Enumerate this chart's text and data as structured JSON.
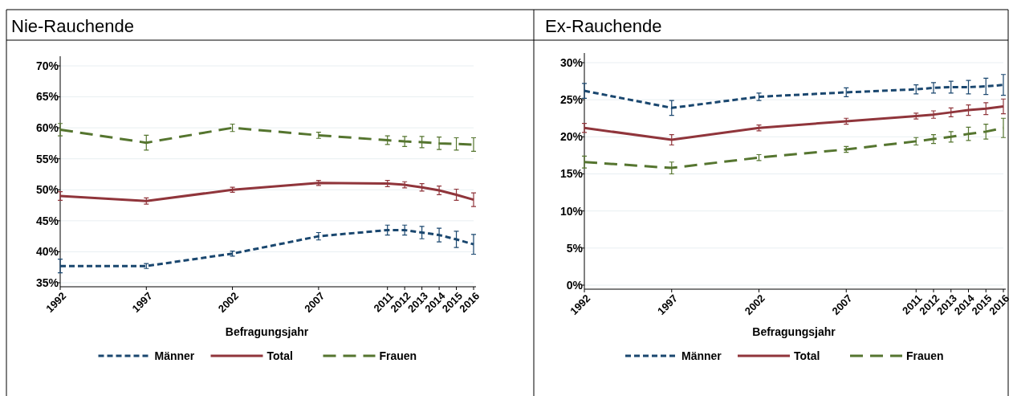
{
  "chart_data": [
    {
      "type": "line",
      "title": "Nie-Rauchende",
      "xlabel": "Befragungsjahr",
      "x": [
        1992,
        1997,
        2002,
        2007,
        2011,
        2012,
        2013,
        2014,
        2015,
        2016
      ],
      "xlim": [
        1992,
        2016
      ],
      "xticks": [
        1992,
        1997,
        2002,
        2007,
        2011,
        2012,
        2013,
        2014,
        2015,
        2016
      ],
      "ylim": [
        35,
        70
      ],
      "yticks": [
        {
          "value": 35,
          "label": "35%"
        },
        {
          "value": 40,
          "label": "40%"
        },
        {
          "value": 45,
          "label": "45%"
        },
        {
          "value": 50,
          "label": "50%"
        },
        {
          "value": 55,
          "label": "55%"
        },
        {
          "value": 60,
          "label": "60%"
        },
        {
          "value": 65,
          "label": "65%"
        },
        {
          "value": 70,
          "label": "70%"
        }
      ],
      "grid": "y",
      "legend": "bottom",
      "series": [
        {
          "name": "Männer",
          "color": "#1a476f",
          "line_style": "dashed",
          "values": [
            37.7,
            37.7,
            39.7,
            42.5,
            43.5,
            43.5,
            43.1,
            42.7,
            42.0,
            41.2
          ],
          "errors": [
            1.1,
            0.4,
            0.4,
            0.6,
            0.8,
            0.8,
            1.0,
            1.1,
            1.3,
            1.6
          ]
        },
        {
          "name": "Total",
          "color": "#90353b",
          "line_style": "solid",
          "values": [
            49.0,
            48.2,
            50.0,
            51.1,
            51.0,
            50.8,
            50.4,
            49.9,
            49.2,
            48.4
          ],
          "errors": [
            0.7,
            0.5,
            0.4,
            0.4,
            0.5,
            0.5,
            0.6,
            0.7,
            0.9,
            1.1
          ]
        },
        {
          "name": "Frauen",
          "color": "#55752f",
          "line_style": "dashed",
          "values": [
            59.7,
            57.6,
            60.0,
            58.8,
            58.0,
            57.8,
            57.7,
            57.5,
            57.4,
            57.3
          ],
          "errors": [
            1.0,
            1.2,
            0.6,
            0.5,
            0.7,
            0.8,
            0.9,
            1.0,
            1.0,
            1.1
          ]
        }
      ]
    },
    {
      "type": "line",
      "title": "Ex-Rauchende",
      "xlabel": "Befragungsjahr",
      "x": [
        1992,
        1997,
        2002,
        2007,
        2011,
        2012,
        2013,
        2014,
        2015,
        2016
      ],
      "xlim": [
        1992,
        2016
      ],
      "xticks": [
        1992,
        1997,
        2002,
        2007,
        2011,
        2012,
        2013,
        2014,
        2015,
        2016
      ],
      "ylim": [
        0,
        30
      ],
      "yticks": [
        {
          "value": 0,
          "label": "0%"
        },
        {
          "value": 5,
          "label": "5%"
        },
        {
          "value": 10,
          "label": "10%"
        },
        {
          "value": 15,
          "label": "15%"
        },
        {
          "value": 20,
          "label": "20%"
        },
        {
          "value": 25,
          "label": "25%"
        },
        {
          "value": 30,
          "label": "30%"
        }
      ],
      "grid": "y",
      "legend": "bottom",
      "series": [
        {
          "name": "Männer",
          "color": "#1a476f",
          "line_style": "dashed",
          "values": [
            26.2,
            23.9,
            25.4,
            26.0,
            26.4,
            26.6,
            26.7,
            26.7,
            26.8,
            27.0
          ],
          "errors": [
            1.0,
            1.0,
            0.5,
            0.6,
            0.6,
            0.7,
            0.8,
            0.9,
            1.1,
            1.4
          ]
        },
        {
          "name": "Total",
          "color": "#90353b",
          "line_style": "solid",
          "values": [
            21.2,
            19.6,
            21.2,
            22.1,
            22.8,
            23.0,
            23.3,
            23.6,
            23.8,
            24.1
          ],
          "errors": [
            0.6,
            0.7,
            0.4,
            0.4,
            0.4,
            0.5,
            0.6,
            0.7,
            0.8,
            1.0
          ]
        },
        {
          "name": "Frauen",
          "color": "#55752f",
          "line_style": "dashed",
          "values": [
            16.6,
            15.8,
            17.2,
            18.3,
            19.4,
            19.7,
            20.0,
            20.4,
            20.7,
            21.2
          ],
          "errors": [
            0.8,
            0.8,
            0.4,
            0.4,
            0.5,
            0.6,
            0.7,
            0.9,
            1.0,
            1.3
          ]
        }
      ]
    }
  ]
}
